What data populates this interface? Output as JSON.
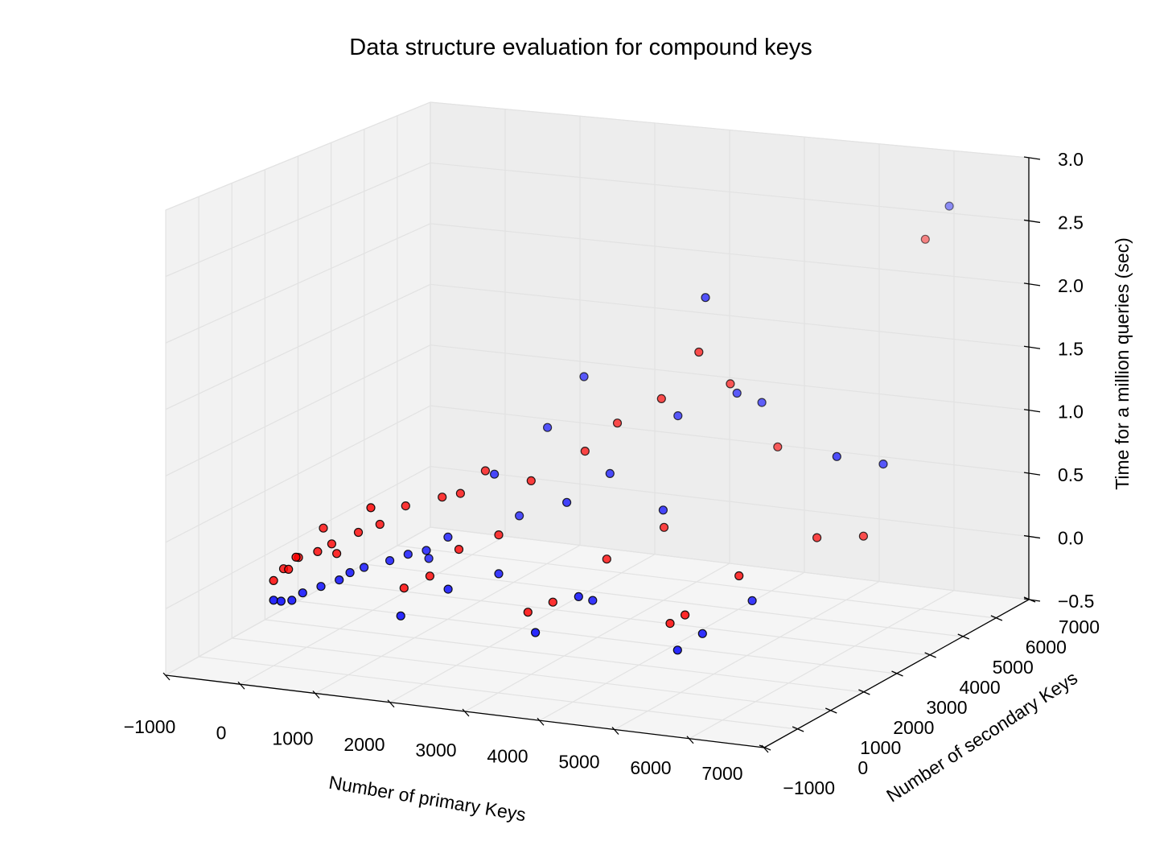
{
  "chart_data": {
    "type": "scatter",
    "title": "Data structure evaluation for compound keys",
    "xlabel": "Number of primary Keys",
    "ylabel": "Number of secondary Keys",
    "zlabel": "Time for a million queries (sec)",
    "xlim": [
      -1000,
      7000
    ],
    "ylim": [
      -1000,
      7000
    ],
    "zlim": [
      -0.5,
      3.0
    ],
    "x_ticks": [
      "−1000",
      "0",
      "1000",
      "2000",
      "3000",
      "4000",
      "5000",
      "6000",
      "7000"
    ],
    "y_ticks": [
      "−1000",
      "0",
      "1000",
      "2000",
      "3000",
      "4000",
      "5000",
      "6000",
      "7000"
    ],
    "z_ticks": [
      "−0.5",
      "0.0",
      "0.5",
      "1.0",
      "1.5",
      "2.0",
      "2.5",
      "3.0"
    ],
    "grid": true,
    "series": [
      {
        "color": "#ff0000",
        "points": [
          [
            0,
            0,
            0.15
          ],
          [
            0,
            300,
            0.2
          ],
          [
            200,
            0,
            0.25
          ],
          [
            200,
            300,
            0.3
          ],
          [
            300,
            0,
            0.35
          ],
          [
            500,
            200,
            0.38
          ],
          [
            600,
            400,
            0.42
          ],
          [
            400,
            600,
            0.5
          ],
          [
            800,
            100,
            0.4
          ],
          [
            1000,
            300,
            0.55
          ],
          [
            1200,
            500,
            0.6
          ],
          [
            1500,
            600,
            0.75
          ],
          [
            1900,
            800,
            0.82
          ],
          [
            2100,
            900,
            0.85
          ],
          [
            2300,
            1200,
            1.0
          ],
          [
            1700,
            100,
            0.2
          ],
          [
            2000,
            200,
            0.3
          ],
          [
            2300,
            400,
            0.5
          ],
          [
            2700,
            700,
            0.6
          ],
          [
            3000,
            1000,
            1.0
          ],
          [
            3500,
            1500,
            1.2
          ],
          [
            3800,
            1800,
            1.4
          ],
          [
            4300,
            2000,
            1.6
          ],
          [
            5000,
            2500,
            1.7
          ],
          [
            3400,
            0,
            0.15
          ],
          [
            3600,
            300,
            0.2
          ],
          [
            4100,
            800,
            0.5
          ],
          [
            4600,
            1400,
            0.7
          ],
          [
            5500,
            2800,
            1.2
          ],
          [
            6500,
            5000,
            2.6
          ],
          [
            5300,
            0,
            0.2
          ],
          [
            5500,
            0,
            0.28
          ],
          [
            6000,
            500,
            0.55
          ],
          [
            6600,
            1500,
            0.75
          ],
          [
            7000,
            2000,
            0.72
          ],
          [
            1300,
            0,
            0.8
          ],
          [
            4800,
            2000,
            2.0
          ]
        ]
      },
      {
        "color": "#0000ff",
        "points": [
          [
            0,
            0,
            0.0
          ],
          [
            100,
            0,
            0.0
          ],
          [
            200,
            100,
            0.0
          ],
          [
            300,
            200,
            0.05
          ],
          [
            500,
            300,
            0.1
          ],
          [
            700,
            400,
            0.15
          ],
          [
            800,
            500,
            0.2
          ],
          [
            900,
            700,
            0.22
          ],
          [
            1200,
            800,
            0.28
          ],
          [
            1400,
            900,
            0.33
          ],
          [
            1600,
            1000,
            0.36
          ],
          [
            1800,
            1200,
            0.45
          ],
          [
            2200,
            1700,
            0.9
          ],
          [
            2600,
            2400,
            1.2
          ],
          [
            3000,
            2600,
            1.6
          ],
          [
            1700,
            0,
            0.0
          ],
          [
            2200,
            300,
            0.2
          ],
          [
            2700,
            700,
            0.3
          ],
          [
            3300,
            1400,
            0.8
          ],
          [
            3700,
            1800,
            1.0
          ],
          [
            4300,
            2500,
            1.4
          ],
          [
            5000,
            2700,
            1.6
          ],
          [
            3500,
            0,
            0.0
          ],
          [
            3900,
            400,
            0.25
          ],
          [
            4000,
            600,
            0.2
          ],
          [
            4500,
            1600,
            0.8
          ],
          [
            5200,
            3000,
            1.5
          ],
          [
            6600,
            5500,
            2.8
          ],
          [
            5400,
            0,
            0.0
          ],
          [
            5600,
            300,
            0.1
          ],
          [
            6000,
            900,
            0.3
          ],
          [
            6600,
            2100,
            1.3
          ],
          [
            7000,
            2600,
            1.2
          ],
          [
            4800,
            2200,
            2.4
          ],
          [
            2400,
            2000,
            0.55
          ],
          [
            1500,
            1300,
            0.25
          ]
        ]
      }
    ]
  }
}
